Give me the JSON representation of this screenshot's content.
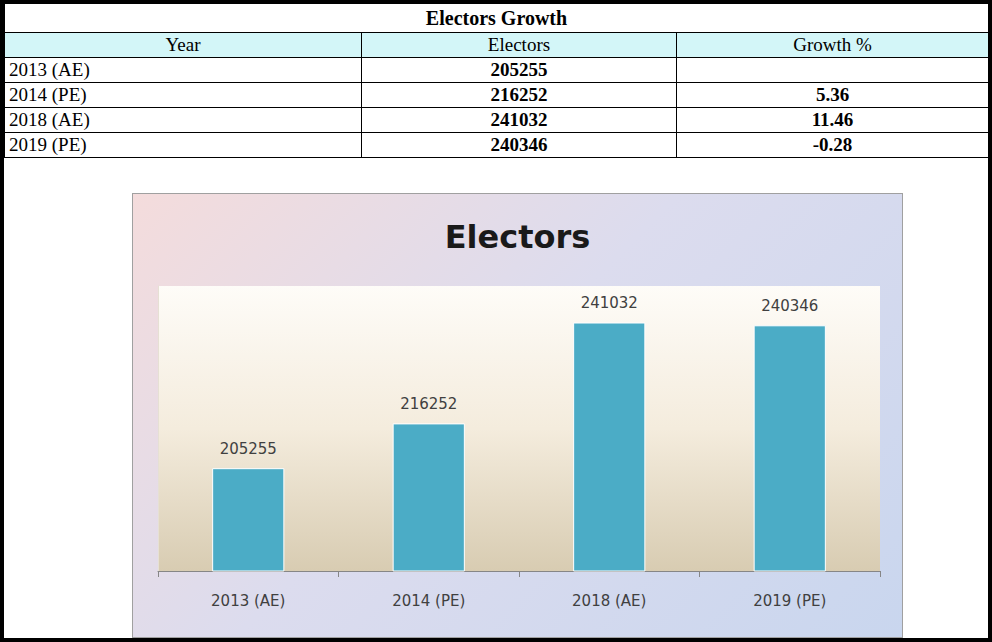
{
  "table": {
    "title": "Electors Growth",
    "columns": [
      "Year",
      "Electors",
      "Growth %"
    ],
    "rows": [
      [
        "2013 (AE)",
        205255,
        null
      ],
      [
        "2014 (PE)",
        216252,
        5.36
      ],
      [
        "2018 (AE)",
        241032,
        11.46
      ],
      [
        "2019 (PE)",
        240346,
        -0.28
      ]
    ]
  },
  "chart_data": {
    "type": "bar",
    "title": "Electors",
    "categories": [
      "2013 (AE)",
      "2014 (PE)",
      "2018 (AE)",
      "2019 (PE)"
    ],
    "values": [
      205255,
      216252,
      241032,
      240346
    ],
    "color": "#4bacc6",
    "ylim": [
      180000,
      250000
    ],
    "grid": false,
    "data_labels": true,
    "tick_labels": "x"
  }
}
